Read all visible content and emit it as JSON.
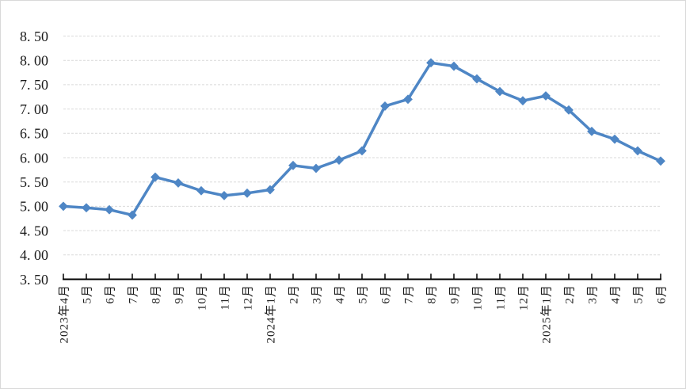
{
  "chart_data": {
    "type": "line",
    "title": "",
    "legend": "none",
    "grid": "horizontal-light-dashed",
    "marker": "diamond",
    "categories": [
      "2023年4月",
      "5月",
      "6月",
      "7月",
      "8月",
      "9月",
      "10月",
      "11月",
      "12月",
      "2024年1月",
      "2月",
      "3月",
      "4月",
      "5月",
      "6月",
      "7月",
      "8月",
      "9月",
      "10月",
      "11月",
      "12月",
      "2025年1月",
      "2月",
      "3月",
      "4月",
      "5月",
      "6月"
    ],
    "series": [
      {
        "name": "",
        "values": [
          5.0,
          4.97,
          4.93,
          4.82,
          5.6,
          5.48,
          5.32,
          5.22,
          5.27,
          5.34,
          5.84,
          5.78,
          5.95,
          6.14,
          7.06,
          7.2,
          7.95,
          7.88,
          7.62,
          7.36,
          7.17,
          7.27,
          6.98,
          6.54,
          6.38,
          6.14,
          5.93
        ]
      }
    ],
    "ylim": [
      3.5,
      8.5
    ],
    "y_ticks": [
      8.5,
      8.0,
      7.5,
      7.0,
      6.5,
      6.0,
      5.5,
      5.0,
      4.5,
      4.0,
      3.5
    ],
    "y_tick_labels": [
      "8. 50",
      "8. 00",
      "7. 50",
      "7. 00",
      "6. 50",
      "6. 00",
      "5. 50",
      "5. 00",
      "4. 50",
      "4. 00",
      "3. 50"
    ],
    "xlabel": "",
    "ylabel": "",
    "colors": {
      "line": "#4e86c5",
      "marker": "#4e86c5",
      "gridline": "#d9d9d9",
      "axis": "#000000",
      "tick_text": "#1a1a1a",
      "border": "#d9d9d9",
      "background": "#ffffff"
    }
  }
}
